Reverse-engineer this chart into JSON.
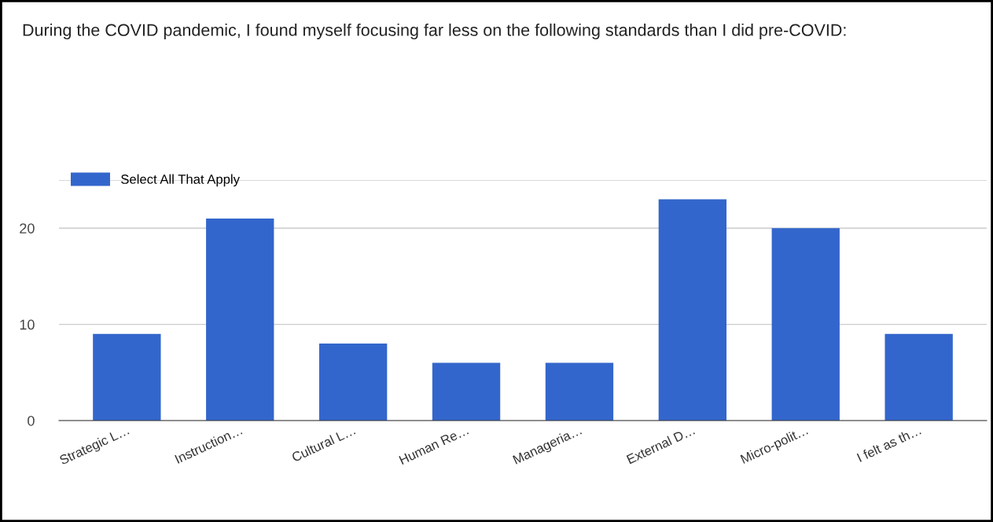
{
  "chart_data": {
    "type": "bar",
    "title": "During the COVID pandemic, I found myself focusing far less on the following standards than I did pre-COVID:",
    "categories": [
      "Strategic L…",
      "Instruction…",
      "Cultural L…",
      "Human Re…",
      "Manageria…",
      "External D…",
      "Micro-polit…",
      "I felt as th…"
    ],
    "series": [
      {
        "name": "Select All That Apply",
        "color": "#3366cc",
        "values": [
          9,
          21,
          8,
          6,
          6,
          23,
          20,
          9
        ]
      }
    ],
    "ylim": [
      0,
      25
    ],
    "yticks": [
      0,
      10,
      20,
      {
        "value": 25,
        "label": null
      }
    ],
    "grid": "y",
    "legend": "top left"
  }
}
